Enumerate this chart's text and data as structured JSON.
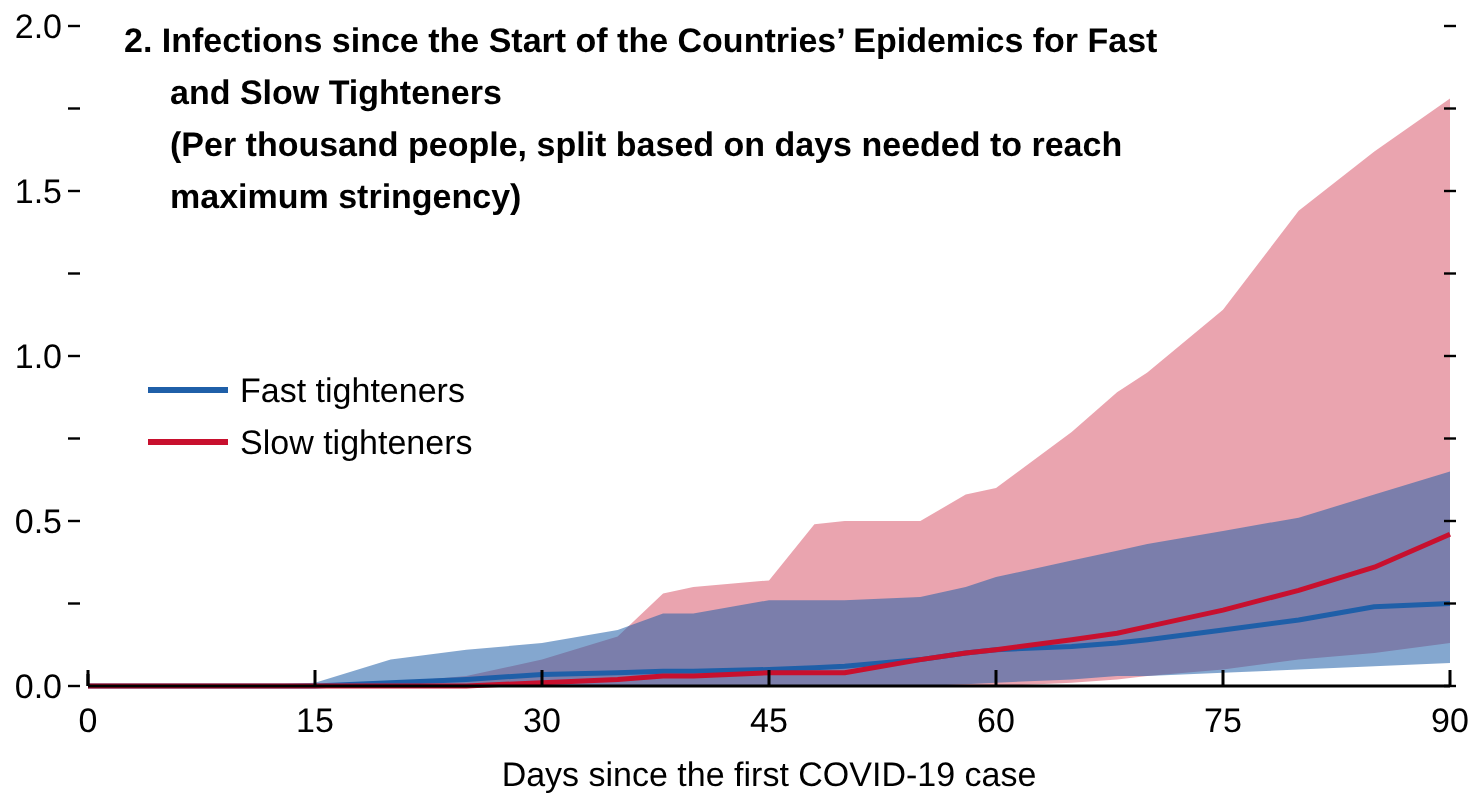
{
  "chart_data": {
    "type": "line",
    "title": "2. Infections since the Start of the Countries’ Epidemics for Fast and Slow Tighteners",
    "subtitle": "(Per thousand people, split based on days needed to reach maximum stringency)",
    "xlabel": "Days since the first COVID-19 case",
    "x": [
      0,
      10,
      15,
      20,
      25,
      30,
      35,
      38,
      40,
      45,
      48,
      50,
      55,
      58,
      60,
      65,
      68,
      70,
      75,
      80,
      85,
      90
    ],
    "series": [
      {
        "name": "Fast tighteners",
        "color": "#1f5fa8",
        "values": [
          0,
          0,
          0,
          0.01,
          0.02,
          0.035,
          0.04,
          0.045,
          0.045,
          0.05,
          0.055,
          0.06,
          0.08,
          0.1,
          0.11,
          0.12,
          0.13,
          0.14,
          0.17,
          0.2,
          0.24,
          0.25
        ],
        "lower": [
          0,
          0,
          0,
          0,
          0,
          0,
          0,
          0,
          0,
          0,
          0,
          0,
          0,
          0.005,
          0.01,
          0.02,
          0.03,
          0.03,
          0.04,
          0.05,
          0.06,
          0.07
        ],
        "upper": [
          0,
          0,
          0.01,
          0.08,
          0.11,
          0.13,
          0.17,
          0.22,
          0.22,
          0.26,
          0.26,
          0.26,
          0.27,
          0.3,
          0.33,
          0.38,
          0.41,
          0.43,
          0.47,
          0.51,
          0.58,
          0.65
        ]
      },
      {
        "name": "Slow tighteners",
        "color": "#c8102e",
        "values": [
          0,
          0,
          0,
          0,
          0,
          0.01,
          0.02,
          0.03,
          0.03,
          0.04,
          0.04,
          0.04,
          0.08,
          0.1,
          0.11,
          0.14,
          0.16,
          0.18,
          0.23,
          0.29,
          0.36,
          0.46
        ],
        "lower": [
          0,
          0,
          0,
          0,
          0,
          0,
          0,
          0,
          0,
          0,
          0,
          0,
          0,
          0,
          0,
          0.01,
          0.02,
          0.03,
          0.05,
          0.08,
          0.1,
          0.13
        ],
        "upper": [
          0,
          0,
          0,
          0.01,
          0.03,
          0.08,
          0.15,
          0.28,
          0.3,
          0.32,
          0.49,
          0.5,
          0.5,
          0.58,
          0.6,
          0.77,
          0.89,
          0.95,
          1.14,
          1.44,
          1.62,
          1.78
        ]
      }
    ],
    "xlim": [
      0,
      90
    ],
    "xticks": [
      0,
      15,
      30,
      45,
      60,
      75,
      90
    ],
    "ylim": [
      0,
      2
    ],
    "yticks": [
      {
        "value": 0,
        "label": "0.0"
      },
      {
        "value": 0.25,
        "label": null
      },
      {
        "value": 0.5,
        "label": "0.5"
      },
      {
        "value": 0.75,
        "label": null
      },
      {
        "value": 1,
        "label": "1.0"
      },
      {
        "value": 1.25,
        "label": null
      },
      {
        "value": 1.5,
        "label": "1.5"
      },
      {
        "value": 1.75,
        "label": null
      },
      {
        "value": 2,
        "label": "2.0"
      }
    ],
    "legend": "left",
    "grid": false
  }
}
